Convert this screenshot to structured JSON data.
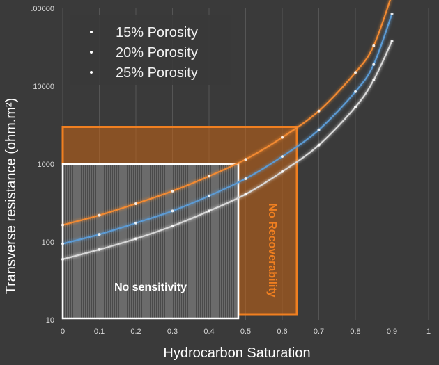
{
  "chart_data": {
    "type": "line",
    "title": "",
    "xlabel": "Hydrocarbon Saturation",
    "ylabel": "Transverse resistance (ohm.m²)",
    "x_scale": "linear",
    "y_scale": "log",
    "xlim": [
      0,
      1
    ],
    "ylim": [
      10,
      100000
    ],
    "x_ticks": [
      "0",
      "0.1",
      "0.2",
      "0.3",
      "0.4",
      "0.5",
      "0.6",
      "0.7",
      "0.8",
      "0.9",
      "1"
    ],
    "y_ticks": [
      "10",
      "100",
      "1000",
      "10000",
      ".00000"
    ],
    "grid": "vertical",
    "legend_position": "top-left",
    "series": [
      {
        "name": "15% Porosity",
        "color": "#f28a30",
        "x": [
          0,
          0.1,
          0.2,
          0.3,
          0.4,
          0.5,
          0.6,
          0.7,
          0.8,
          0.85,
          0.9
        ],
        "y": [
          165,
          220,
          310,
          450,
          700,
          1150,
          2200,
          4800,
          15000,
          33000,
          150000
        ]
      },
      {
        "name": "20% Porosity",
        "color": "#5b9bd5",
        "x": [
          0,
          0.1,
          0.2,
          0.3,
          0.4,
          0.5,
          0.6,
          0.7,
          0.8,
          0.85,
          0.9
        ],
        "y": [
          95,
          125,
          175,
          250,
          390,
          650,
          1250,
          2750,
          8500,
          19000,
          85000
        ]
      },
      {
        "name": "25% Porosity",
        "color": "#d9d9d9",
        "x": [
          0,
          0.1,
          0.2,
          0.3,
          0.4,
          0.5,
          0.6,
          0.7,
          0.8,
          0.85,
          0.9
        ],
        "y": [
          60,
          80,
          110,
          160,
          250,
          410,
          800,
          1750,
          5400,
          12000,
          38000
        ]
      }
    ],
    "annotations": [
      {
        "label": "No sensitivity",
        "kind": "hatched-region",
        "x_range": [
          0,
          0.48
        ],
        "y_range": [
          10,
          1000
        ],
        "color": "#ffffff"
      },
      {
        "label": "No Recoverability",
        "kind": "outlined-region",
        "x_range": [
          0.48,
          0.64
        ],
        "y_range": [
          10,
          3000
        ],
        "color": "#f07f20"
      }
    ]
  }
}
